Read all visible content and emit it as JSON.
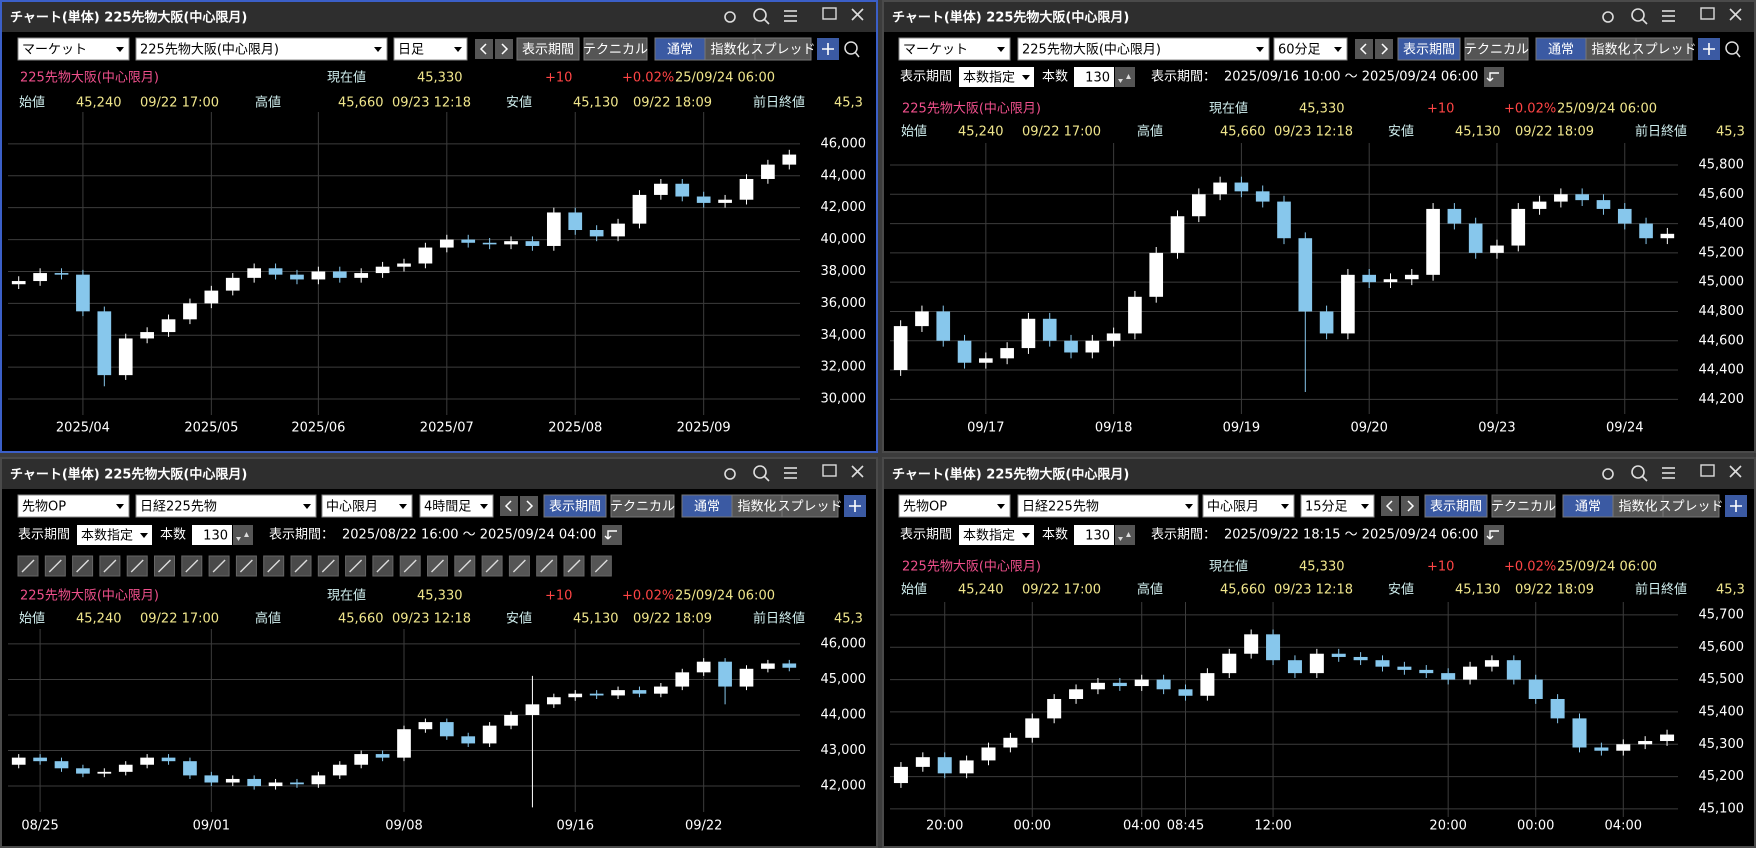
{
  "panels": [
    {
      "title": "チャート(単体) 225先物大阪(中心限月)",
      "selects": [
        "マーケット",
        "225先物大阪(中心限月)",
        "日足"
      ],
      "buttons": [
        "表示期間",
        "テクニカル",
        "通常",
        "指数化",
        "スプレッド"
      ],
      "active": [
        "通常"
      ],
      "quote": {
        "name": "225先物大阪(中心限月)",
        "current_label": "現在値",
        "current": "45,330",
        "change": "+10",
        "change_pct": "+0.02%",
        "datetime": "25/09/24 06:00"
      },
      "ohlc": {
        "open_label": "始値",
        "open": "45,240",
        "open_time": "09/22 17:00",
        "high_label": "高値",
        "high": "45,660",
        "high_time": "09/23 12:18",
        "low_label": "安値",
        "low": "45,130",
        "low_time": "09/22 18:09",
        "prev_label": "前日終値",
        "prev": "45,3"
      }
    },
    {
      "title": "チャート(単体) 225先物大阪(中心限月)",
      "selects": [
        "マーケット",
        "225先物大阪(中心限月)",
        "60分足"
      ],
      "buttons": [
        "表示期間",
        "テクニカル",
        "通常",
        "指数化",
        "スプレッド"
      ],
      "active": [
        "表示期間",
        "通常"
      ],
      "period": {
        "label": "表示期間",
        "mode": "本数指定",
        "count_label": "本数",
        "count": 130,
        "range_label": "表示期間：",
        "range": "2025/09/16 10:00 ～ 2025/09/24 06:00"
      },
      "quote": {
        "name": "225先物大阪(中心限月)",
        "current_label": "現在値",
        "current": "45,330",
        "change": "+10",
        "change_pct": "+0.02%",
        "datetime": "25/09/24 06:00"
      },
      "ohlc": {
        "open_label": "始値",
        "open": "45,240",
        "open_time": "09/22 17:00",
        "high_label": "高値",
        "high": "45,660",
        "high_time": "09/23 12:18",
        "low_label": "安値",
        "low": "45,130",
        "low_time": "09/22 18:09",
        "prev_label": "前日終値",
        "prev": "45,3"
      }
    },
    {
      "title": "チャート(単体) 225先物大阪(中心限月)",
      "selects": [
        "先物OP",
        "日経225先物",
        "中心限月",
        "4時間足"
      ],
      "buttons": [
        "表示期間",
        "テクニカル",
        "通常",
        "指数化",
        "スプレッド"
      ],
      "active": [
        "表示期間",
        "通常"
      ],
      "period": {
        "label": "表示期間",
        "mode": "本数指定",
        "count_label": "本数",
        "count": 130,
        "range_label": "表示期間：",
        "range": "2025/08/22 16:00 ～ 2025/09/24 04:00"
      },
      "quote": {
        "name": "225先物大阪(中心限月)",
        "current_label": "現在値",
        "current": "45,330",
        "change": "+10",
        "change_pct": "+0.02%",
        "datetime": "25/09/24 06:00"
      },
      "ohlc": {
        "open_label": "始値",
        "open": "45,240",
        "open_time": "09/22 17:00",
        "high_label": "高値",
        "high": "45,660",
        "high_time": "09/23 12:18",
        "low_label": "安値",
        "low": "45,130",
        "low_time": "09/22 18:09",
        "prev_label": "前日終値",
        "prev": "45,3"
      }
    },
    {
      "title": "チャート(単体) 225先物大阪(中心限月)",
      "selects": [
        "先物OP",
        "日経225先物",
        "中心限月",
        "15分足"
      ],
      "buttons": [
        "表示期間",
        "テクニカル",
        "通常",
        "指数化",
        "スプレッド"
      ],
      "active": [
        "表示期間",
        "通常"
      ],
      "period": {
        "label": "表示期間",
        "mode": "本数指定",
        "count_label": "本数",
        "count": 130,
        "range_label": "表示期間：",
        "range": "2025/09/22 18:15 ～ 2025/09/24 06:00"
      },
      "quote": {
        "name": "225先物大阪(中心限月)",
        "current_label": "現在値",
        "current": "45,330",
        "change": "+10",
        "change_pct": "+0.02%",
        "datetime": "25/09/24 06:00"
      },
      "ohlc": {
        "open_label": "始値",
        "open": "45,240",
        "open_time": "09/22 17:00",
        "high_label": "高値",
        "high": "45,660",
        "high_time": "09/23 12:18",
        "low_label": "安値",
        "low": "45,130",
        "low_time": "09/22 18:09",
        "prev_label": "前日終値",
        "prev": "45,3"
      }
    }
  ],
  "chart_data": [
    {
      "type": "candlestick",
      "up_color": "#ffffff",
      "down_color": "#87c7ec",
      "grid": true,
      "categories": [
        null,
        null,
        null,
        "2025/04",
        null,
        null,
        null,
        null,
        null,
        "2025/05",
        null,
        null,
        null,
        null,
        "2025/06",
        null,
        null,
        null,
        null,
        null,
        "2025/07",
        null,
        null,
        null,
        null,
        null,
        "2025/08",
        null,
        null,
        null,
        null,
        null,
        "2025/09",
        null,
        null,
        null,
        null
      ],
      "open": [
        37200,
        37400,
        37900,
        37800,
        35500,
        31500,
        33800,
        34200,
        35000,
        36000,
        36800,
        37600,
        38200,
        37800,
        37500,
        38000,
        37600,
        37900,
        38300,
        38500,
        39500,
        40000,
        39800,
        39700,
        39900,
        39600,
        41700,
        40600,
        40200,
        41000,
        42800,
        43500,
        42700,
        42300,
        42500,
        43800,
        44700
      ],
      "high": [
        37700,
        38200,
        38200,
        38100,
        35800,
        34100,
        34500,
        35300,
        36300,
        37100,
        37900,
        38500,
        38500,
        38100,
        38300,
        38300,
        38200,
        38600,
        38800,
        39800,
        40300,
        40300,
        40100,
        40200,
        40200,
        42000,
        42000,
        40900,
        41300,
        43100,
        43800,
        43800,
        43000,
        42800,
        44100,
        45000,
        45630
      ],
      "low": [
        36900,
        37100,
        37500,
        35200,
        30800,
        31200,
        33500,
        33900,
        34700,
        35700,
        36500,
        37300,
        37500,
        37200,
        37200,
        37300,
        37300,
        37600,
        38000,
        38200,
        39200,
        39500,
        39400,
        39400,
        39300,
        39300,
        40300,
        39900,
        39900,
        40700,
        42500,
        42400,
        42000,
        42000,
        42200,
        43500,
        44400
      ],
      "close": [
        37400,
        37900,
        37800,
        35500,
        31500,
        33800,
        34200,
        35000,
        36000,
        36800,
        37600,
        38200,
        37800,
        37500,
        38000,
        37600,
        37900,
        38300,
        38500,
        39500,
        40000,
        39800,
        39700,
        39900,
        39600,
        41700,
        40600,
        40200,
        41000,
        42800,
        43500,
        42700,
        42300,
        42500,
        43800,
        44700,
        45330
      ],
      "ylim": [
        29000,
        48000
      ],
      "yticks": [
        {
          "value": 30000,
          "label": "30,000"
        },
        {
          "value": 32000,
          "label": "32,000"
        },
        {
          "value": 34000,
          "label": "34,000"
        },
        {
          "value": 36000,
          "label": "36,000"
        },
        {
          "value": 38000,
          "label": "38,000"
        },
        {
          "value": 40000,
          "label": "40,000"
        },
        {
          "value": 42000,
          "label": "42,000"
        },
        {
          "value": 44000,
          "label": "44,000"
        },
        {
          "value": 46000,
          "label": "46,000"
        }
      ]
    },
    {
      "type": "candlestick",
      "up_color": "#ffffff",
      "down_color": "#87c7ec",
      "grid": true,
      "categories": [
        null,
        null,
        null,
        null,
        "09/17",
        null,
        null,
        null,
        null,
        null,
        "09/18",
        null,
        null,
        null,
        null,
        null,
        "09/19",
        null,
        null,
        null,
        null,
        null,
        "09/20",
        null,
        null,
        null,
        null,
        null,
        "09/23",
        null,
        null,
        null,
        null,
        null,
        "09/24",
        null,
        null
      ],
      "open": [
        44400,
        44700,
        44800,
        44600,
        44450,
        44480,
        44550,
        44750,
        44600,
        44520,
        44600,
        44650,
        44900,
        45200,
        45450,
        45600,
        45680,
        45620,
        45550,
        45300,
        44800,
        44650,
        45050,
        45000,
        45020,
        45050,
        45500,
        45400,
        45200,
        45250,
        45500,
        45550,
        45600,
        45560,
        45500,
        45400,
        45300
      ],
      "high": [
        44740,
        44840,
        44840,
        44640,
        44520,
        44590,
        44790,
        44790,
        44640,
        44640,
        44690,
        44940,
        45240,
        45490,
        45640,
        45720,
        45720,
        45660,
        45590,
        45340,
        44840,
        45090,
        45090,
        45060,
        45090,
        45540,
        45540,
        45440,
        45290,
        45540,
        45590,
        45640,
        45640,
        45600,
        45540,
        45440,
        45370
      ],
      "low": [
        44360,
        44660,
        44560,
        44410,
        44410,
        44440,
        44510,
        44560,
        44480,
        44480,
        44560,
        44610,
        44860,
        45160,
        45410,
        45560,
        45580,
        45510,
        45260,
        44250,
        44610,
        44610,
        44960,
        44960,
        44980,
        45010,
        45360,
        45160,
        45160,
        45210,
        45460,
        45510,
        45520,
        45460,
        45360,
        45260,
        45260
      ],
      "close": [
        44700,
        44800,
        44600,
        44450,
        44480,
        44550,
        44750,
        44600,
        44520,
        44600,
        44650,
        44900,
        45200,
        45450,
        45600,
        45680,
        45620,
        45550,
        45300,
        44800,
        44650,
        45050,
        45000,
        45020,
        45050,
        45500,
        45400,
        45200,
        45250,
        45500,
        45550,
        45600,
        45560,
        45500,
        45400,
        45300,
        45330
      ],
      "ylim": [
        44100,
        45950
      ],
      "yticks": [
        {
          "value": 44200,
          "label": "44,200"
        },
        {
          "value": 44400,
          "label": "44,400"
        },
        {
          "value": 44600,
          "label": "44,600"
        },
        {
          "value": 44800,
          "label": "44,800"
        },
        {
          "value": 45000,
          "label": "45,000"
        },
        {
          "value": 45200,
          "label": "45,200"
        },
        {
          "value": 45400,
          "label": "45,400"
        },
        {
          "value": 45600,
          "label": "45,600"
        },
        {
          "value": 45800,
          "label": "45,800"
        }
      ]
    },
    {
      "type": "candlestick",
      "up_color": "#ffffff",
      "down_color": "#87c7ec",
      "grid": true,
      "categories": [
        null,
        "08/25",
        null,
        null,
        null,
        null,
        null,
        null,
        null,
        "09/01",
        null,
        null,
        null,
        null,
        null,
        null,
        null,
        null,
        "09/08",
        null,
        null,
        null,
        null,
        null,
        null,
        null,
        "09/16",
        null,
        null,
        null,
        null,
        null,
        "09/22",
        null,
        null,
        null,
        null
      ],
      "open": [
        42600,
        42800,
        42700,
        42500,
        42350,
        42400,
        42600,
        42800,
        42700,
        42300,
        42100,
        42200,
        42000,
        42100,
        42050,
        42300,
        42600,
        42900,
        42800,
        43600,
        43800,
        43400,
        43200,
        43700,
        44000,
        44300,
        44500,
        44600,
        44550,
        44700,
        44600,
        44800,
        45200,
        45500,
        44800,
        45300,
        45450
      ],
      "high": [
        42900,
        42900,
        42800,
        42600,
        42500,
        42700,
        42900,
        42900,
        42800,
        42400,
        42300,
        42300,
        42200,
        42200,
        42400,
        42700,
        43000,
        43000,
        43700,
        43900,
        43900,
        43500,
        43800,
        44100,
        45100,
        44600,
        44700,
        44700,
        44800,
        44800,
        44900,
        45300,
        45600,
        45600,
        45400,
        45550,
        45550
      ],
      "low": [
        42500,
        42600,
        42400,
        42250,
        42250,
        42300,
        42500,
        42600,
        42200,
        42000,
        42000,
        41900,
        41900,
        41950,
        41950,
        42200,
        42500,
        42700,
        42700,
        43500,
        43300,
        43100,
        43100,
        43600,
        41400,
        44200,
        44400,
        44450,
        44450,
        44500,
        44500,
        44700,
        45100,
        44300,
        44700,
        45200,
        45230
      ],
      "close": [
        42800,
        42700,
        42500,
        42350,
        42400,
        42600,
        42800,
        42700,
        42300,
        42100,
        42200,
        42000,
        42100,
        42050,
        42300,
        42600,
        42900,
        42800,
        43600,
        43800,
        43400,
        43200,
        43700,
        44000,
        44300,
        44500,
        44600,
        44550,
        44700,
        44600,
        44800,
        45200,
        45500,
        44800,
        45300,
        45450,
        45330
      ],
      "ylim": [
        41270,
        46420
      ],
      "yticks": [
        {
          "value": 42000,
          "label": "42,000"
        },
        {
          "value": 43000,
          "label": "43,000"
        },
        {
          "value": 44000,
          "label": "44,000"
        },
        {
          "value": 45000,
          "label": "45,000"
        },
        {
          "value": 46000,
          "label": "46,000"
        }
      ]
    },
    {
      "type": "candlestick",
      "up_color": "#ffffff",
      "down_color": "#87c7ec",
      "grid": true,
      "categories": [
        null,
        null,
        "20:00",
        null,
        null,
        null,
        "00:00",
        null,
        null,
        null,
        null,
        "04:00",
        null,
        "08:45",
        null,
        null,
        null,
        "12:00",
        null,
        null,
        null,
        null,
        null,
        null,
        null,
        "20:00",
        null,
        null,
        null,
        "00:00",
        null,
        null,
        null,
        "04:00",
        null,
        null
      ],
      "open": [
        45180,
        45230,
        45260,
        45210,
        45250,
        45290,
        45320,
        45380,
        45440,
        45470,
        45490,
        45480,
        45500,
        45470,
        45450,
        45520,
        45580,
        45640,
        45560,
        45520,
        45580,
        45570,
        45560,
        45540,
        45530,
        45520,
        45500,
        45540,
        45560,
        45500,
        45440,
        45380,
        45290,
        45280,
        45300,
        45310
      ],
      "high": [
        45245,
        45275,
        45275,
        45265,
        45305,
        45335,
        45395,
        45455,
        45485,
        45505,
        45505,
        45515,
        45515,
        45485,
        45535,
        45595,
        45655,
        45655,
        45575,
        45595,
        45595,
        45585,
        45575,
        45555,
        45545,
        45535,
        45555,
        45575,
        45575,
        45515,
        45455,
        45395,
        45305,
        45315,
        45325,
        45345
      ],
      "low": [
        45165,
        45215,
        45195,
        45195,
        45235,
        45275,
        45305,
        45365,
        45425,
        45455,
        45465,
        45465,
        45455,
        45435,
        45435,
        45505,
        45565,
        45545,
        45505,
        45505,
        45555,
        45545,
        45525,
        45515,
        45505,
        45485,
        45485,
        45525,
        45485,
        45425,
        45365,
        45275,
        45265,
        45265,
        45285,
        45295
      ],
      "close": [
        45230,
        45260,
        45210,
        45250,
        45290,
        45320,
        45380,
        45440,
        45470,
        45490,
        45480,
        45500,
        45470,
        45450,
        45520,
        45580,
        45640,
        45560,
        45520,
        45580,
        45570,
        45560,
        45540,
        45530,
        45520,
        45500,
        45540,
        45560,
        45500,
        45440,
        45380,
        45290,
        45280,
        45300,
        45310,
        45330
      ],
      "ylim": [
        45075,
        45740
      ],
      "yticks": [
        {
          "value": 45100,
          "label": "45,100"
        },
        {
          "value": 45200,
          "label": "45,200"
        },
        {
          "value": 45300,
          "label": "45,300"
        },
        {
          "value": 45400,
          "label": "45,400"
        },
        {
          "value": 45500,
          "label": "45,500"
        },
        {
          "value": 45600,
          "label": "45,600"
        },
        {
          "value": 45700,
          "label": "45,700"
        }
      ]
    }
  ]
}
